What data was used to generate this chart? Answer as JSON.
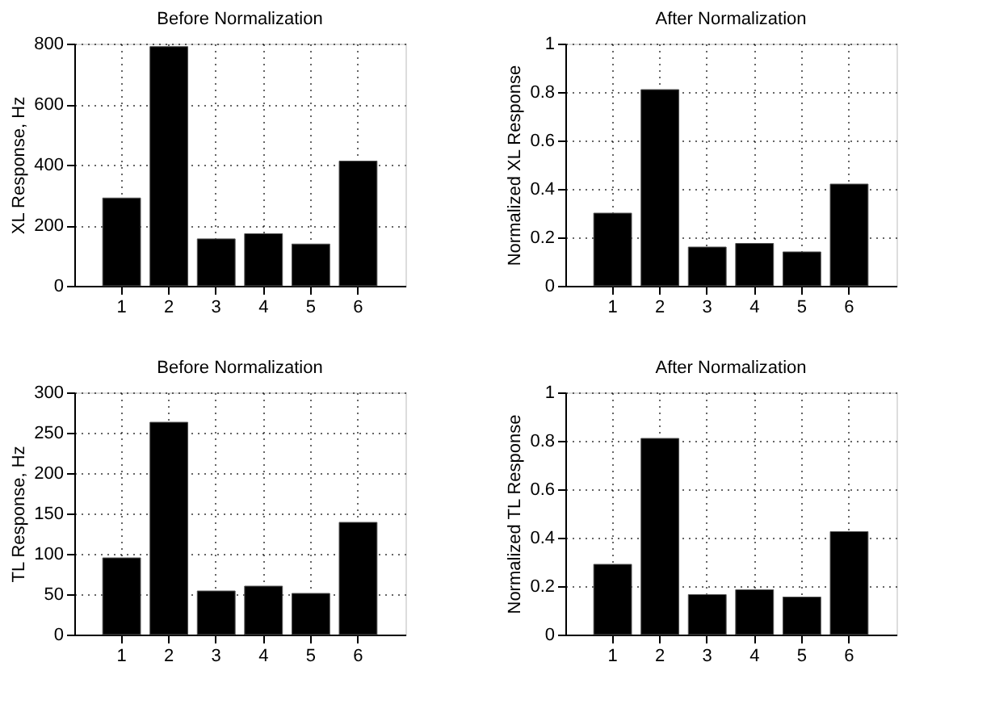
{
  "chart_data": [
    {
      "type": "bar",
      "title": "Before Normalization",
      "ylabel": "XL Response, Hz",
      "categories": [
        "1",
        "2",
        "3",
        "4",
        "5",
        "6"
      ],
      "values": [
        290,
        790,
        155,
        172,
        138,
        412
      ],
      "color": "#000000",
      "ylim": [
        0,
        800
      ],
      "yticks": [
        0,
        200,
        400,
        600,
        800
      ],
      "grid": true
    },
    {
      "type": "bar",
      "title": "After Normalization",
      "ylabel": "Normalized XL Response",
      "categories": [
        "1",
        "2",
        "3",
        "4",
        "5",
        "6"
      ],
      "values": [
        0.3,
        0.81,
        0.16,
        0.175,
        0.14,
        0.42
      ],
      "color": "#000000",
      "ylim": [
        0,
        1
      ],
      "yticks": [
        0,
        0.2,
        0.4,
        0.6,
        0.8,
        1
      ],
      "grid": true
    },
    {
      "type": "bar",
      "title": "Before Normalization",
      "ylabel": "TL Response, Hz",
      "categories": [
        "1",
        "2",
        "3",
        "4",
        "5",
        "6"
      ],
      "values": [
        95,
        263,
        54,
        60,
        51,
        139
      ],
      "color": "#000000",
      "ylim": [
        0,
        300
      ],
      "yticks": [
        0,
        50,
        100,
        150,
        200,
        250,
        300
      ],
      "grid": true
    },
    {
      "type": "bar",
      "title": "After Normalization",
      "ylabel": "Normalized TL Response",
      "categories": [
        "1",
        "2",
        "3",
        "4",
        "5",
        "6"
      ],
      "values": [
        0.29,
        0.81,
        0.165,
        0.185,
        0.155,
        0.425
      ],
      "color": "#000000",
      "ylim": [
        0,
        1
      ],
      "yticks": [
        0,
        0.2,
        0.4,
        0.6,
        0.8,
        1
      ],
      "grid": true
    }
  ]
}
